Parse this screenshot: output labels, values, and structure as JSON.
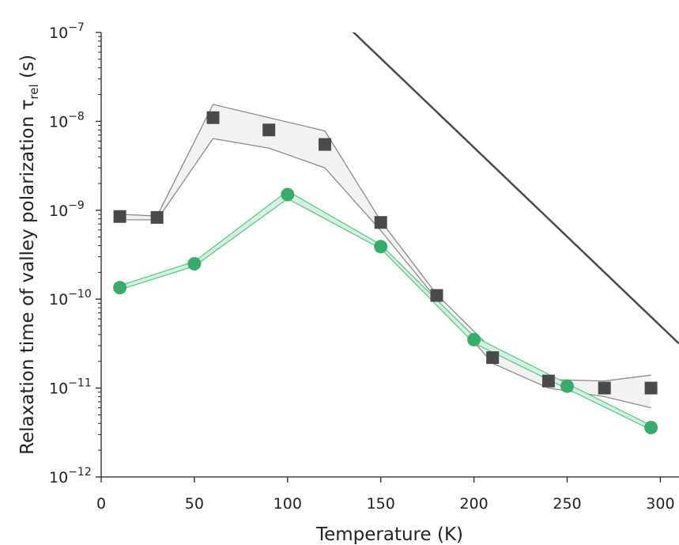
{
  "chart_data": {
    "type": "scatter",
    "xlabel": "Temperature (K)",
    "ylabel_main": "Relaxation time of valley polarization τ",
    "ylabel_sub": "rel",
    "ylabel_unit": " (s)",
    "xlim": [
      0,
      310
    ],
    "ylim": [
      1e-12,
      1e-07
    ],
    "yscale": "log",
    "grid": false,
    "legend": "none",
    "x_ticks": [
      0,
      50,
      100,
      150,
      200,
      250,
      300
    ],
    "x_tick_labels": [
      "0",
      "50",
      "100",
      "150",
      "200",
      "250",
      "300"
    ],
    "y_ticks": [
      {
        "exp": -12,
        "base": "10",
        "sup": "−12"
      },
      {
        "exp": -11,
        "base": "10",
        "sup": "−11"
      },
      {
        "exp": -10,
        "base": "10",
        "sup": "−10"
      },
      {
        "exp": -9,
        "base": "10",
        "sup": "−9"
      },
      {
        "exp": -8,
        "base": "10",
        "sup": "−8"
      },
      {
        "exp": -7,
        "base": "10",
        "sup": "−7"
      }
    ],
    "series": [
      {
        "marker": "square",
        "color": "#4a4a4a",
        "band_fill": "#f2f2f2",
        "band_stroke": "#8c8c8c",
        "points": [
          [
            10,
            8.5e-10
          ],
          [
            30,
            8.3e-10
          ],
          [
            60,
            1.1e-08
          ],
          [
            90,
            8e-09
          ],
          [
            120,
            5.5e-09
          ],
          [
            150,
            7.3e-10
          ],
          [
            180,
            1.1e-10
          ],
          [
            210,
            2.2e-11
          ],
          [
            240,
            1.2e-11
          ],
          [
            270,
            1e-11
          ],
          [
            295,
            1e-11
          ]
        ],
        "band_upper": [
          [
            10,
            9e-10
          ],
          [
            30,
            8.6e-10
          ],
          [
            60,
            1.55e-08
          ],
          [
            90,
            1.1e-08
          ],
          [
            120,
            7.8e-09
          ],
          [
            150,
            7.6e-10
          ],
          [
            180,
            1.13e-10
          ],
          [
            210,
            2.7e-11
          ],
          [
            240,
            1.25e-11
          ],
          [
            270,
            1.2e-11
          ],
          [
            295,
            1.4e-11
          ]
        ],
        "band_lower": [
          [
            10,
            7.8e-10
          ],
          [
            30,
            7.8e-10
          ],
          [
            60,
            6.4e-09
          ],
          [
            90,
            5e-09
          ],
          [
            120,
            3e-09
          ],
          [
            150,
            5.9e-10
          ],
          [
            180,
            1e-10
          ],
          [
            210,
            1.9e-11
          ],
          [
            240,
            1e-11
          ],
          [
            270,
            8e-12
          ],
          [
            295,
            6e-12
          ]
        ]
      },
      {
        "marker": "circle",
        "color": "#36ad6a",
        "band_fill": "#d4f0df",
        "band_stroke": "#5ccb8c",
        "points": [
          [
            10,
            1.35e-10
          ],
          [
            50,
            2.5e-10
          ],
          [
            100,
            1.5e-09
          ],
          [
            150,
            3.9e-10
          ],
          [
            200,
            3.5e-11
          ],
          [
            250,
            1.05e-11
          ],
          [
            295,
            3.6e-12
          ]
        ],
        "band_upper": [
          [
            10,
            1.42e-10
          ],
          [
            50,
            2.65e-10
          ],
          [
            100,
            1.65e-09
          ],
          [
            150,
            4.1e-10
          ],
          [
            200,
            3.8e-11
          ],
          [
            250,
            1.12e-11
          ],
          [
            295,
            3.8e-12
          ]
        ],
        "band_lower": [
          [
            10,
            1.28e-10
          ],
          [
            50,
            2.35e-10
          ],
          [
            100,
            1.35e-09
          ],
          [
            150,
            3.7e-10
          ],
          [
            200,
            3.2e-11
          ],
          [
            250,
            9.8e-12
          ],
          [
            295,
            3.4e-12
          ]
        ]
      }
    ],
    "fit_curve": {
      "color": "#4a4a4a",
      "equation": "tau = 5.2e-5 * exp(-0.04617 * T)",
      "x_range": [
        109,
        310
      ]
    }
  }
}
